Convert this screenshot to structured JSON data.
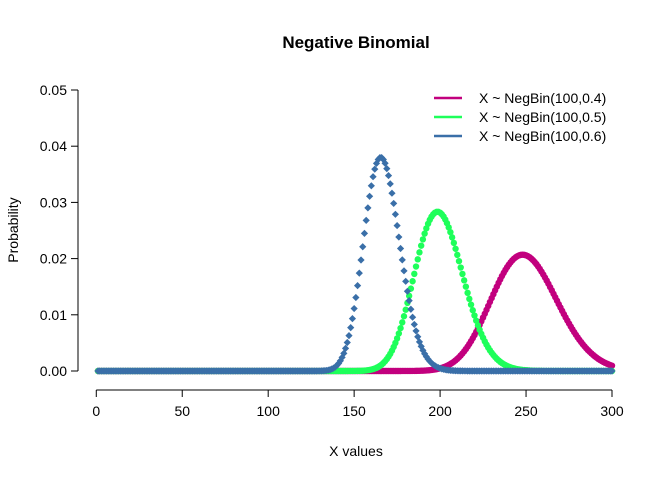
{
  "chart_data": {
    "type": "scatter",
    "title": "Negative Binomial",
    "xlabel": "X values",
    "ylabel": "Probability",
    "xlim": [
      1,
      300
    ],
    "ylim": [
      0,
      0.05
    ],
    "x_ticks": [
      0,
      50,
      100,
      150,
      200,
      250,
      300
    ],
    "y_ticks": [
      "0.00",
      "0.01",
      "0.02",
      "0.03",
      "0.04",
      "0.05"
    ],
    "legend_position": "top-right",
    "series": [
      {
        "name": "X ~ NegBin(100,0.4)",
        "size": 100,
        "prob": 0.4,
        "color": "#C2007E",
        "marker": "circle"
      },
      {
        "name": "X ~ NegBin(100,0.5)",
        "size": 100,
        "prob": 0.5,
        "color": "#1EFF5A",
        "marker": "circle"
      },
      {
        "name": "X ~ NegBin(100,0.6)",
        "size": 100,
        "prob": 0.6,
        "color": "#3A6FA8",
        "marker": "diamond"
      }
    ]
  }
}
